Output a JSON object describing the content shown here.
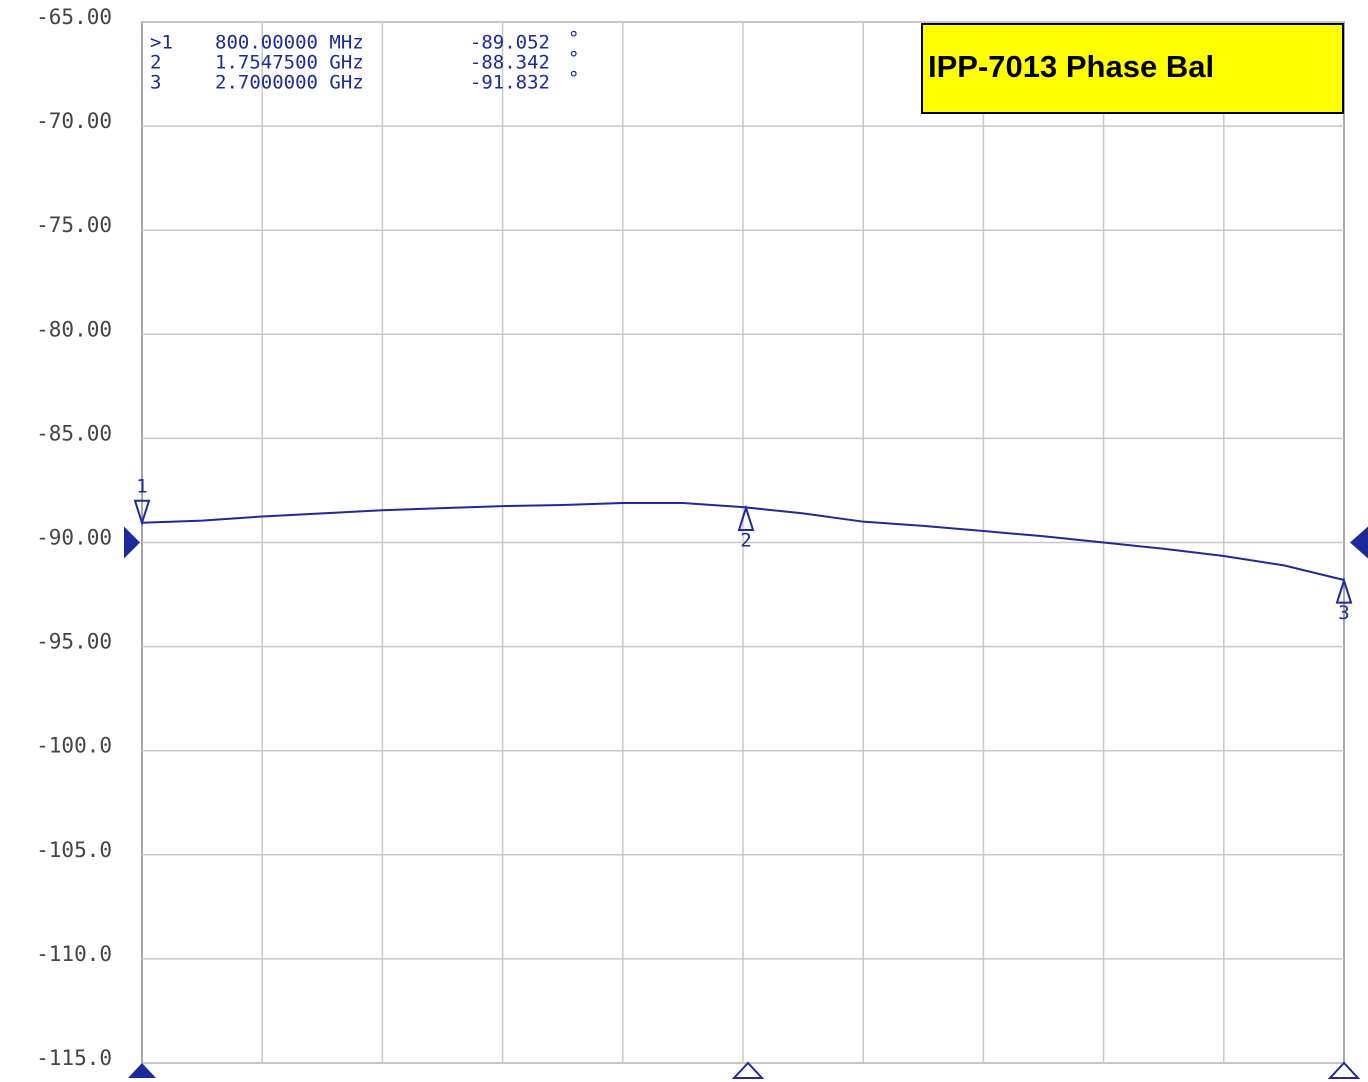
{
  "chart_data": {
    "type": "line",
    "title": "IPP-7013 Phase Bal",
    "ylim": [
      -115,
      -65
    ],
    "yticks": [
      {
        "value": -65,
        "label": "-65.00"
      },
      {
        "value": -70,
        "label": "-70.00"
      },
      {
        "value": -75,
        "label": "-75.00"
      },
      {
        "value": -80,
        "label": "-80.00"
      },
      {
        "value": -85,
        "label": "-85.00"
      },
      {
        "value": -90,
        "label": "-90.00"
      },
      {
        "value": -95,
        "label": "-95.00"
      },
      {
        "value": -100,
        "label": "-100.0"
      },
      {
        "value": -105,
        "label": "-105.0"
      },
      {
        "value": -110,
        "label": "-110.0"
      },
      {
        "value": -115,
        "label": "-115.0"
      }
    ],
    "xlim": [
      0.8,
      2.7
    ],
    "xgrid_divisions": 10,
    "grid": true,
    "reference_level": -90,
    "x": [
      0.8,
      0.895,
      0.99,
      1.085,
      1.18,
      1.275,
      1.37,
      1.465,
      1.56,
      1.655,
      1.75,
      1.845,
      1.94,
      2.035,
      2.13,
      2.225,
      2.32,
      2.415,
      2.51,
      2.605,
      2.7
    ],
    "series": [
      {
        "color": "#1c2a9c",
        "values": [
          -89.05,
          -88.95,
          -88.75,
          -88.6,
          -88.45,
          -88.35,
          -88.25,
          -88.2,
          -88.1,
          -88.1,
          -88.3,
          -88.6,
          -89.0,
          -89.2,
          -89.45,
          -89.7,
          -90.0,
          -90.3,
          -90.65,
          -91.1,
          -91.8
        ]
      }
    ],
    "value_unit": "°",
    "markers": [
      {
        "table_label": ">1",
        "trace_label": "1",
        "x": {
          "value": 0.8,
          "label": "800.00000 MHz"
        },
        "value": -89.052
      },
      {
        "table_label": "2",
        "trace_label": "2",
        "x": {
          "value": 1.75475,
          "label": "1.7547500 GHz"
        },
        "value": -88.342
      },
      {
        "table_label": "3",
        "trace_label": "3",
        "x": {
          "value": 2.7,
          "label": "2.7000000 GHz"
        },
        "value": -91.832
      }
    ]
  }
}
